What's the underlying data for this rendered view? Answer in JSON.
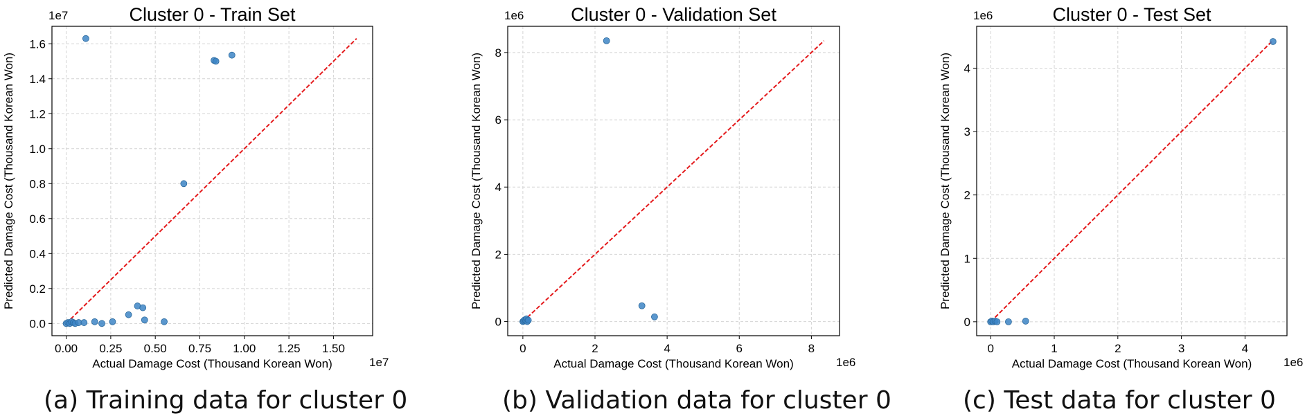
{
  "chart_data": [
    {
      "type": "scatter",
      "title": "Cluster 0 - Train Set",
      "xlabel": "Actual Damage Cost (Thousand Korean Won)",
      "ylabel": "Predicted Damage Cost (Thousand Korean Won)",
      "x_offset_label": "1e7",
      "y_offset_label": "1e7",
      "scale": 10000000,
      "xlim": [
        -0.08,
        1.72
      ],
      "ylim": [
        -0.07,
        1.7
      ],
      "xticks": [
        0.0,
        0.25,
        0.5,
        0.75,
        1.0,
        1.25,
        1.5
      ],
      "xtick_labels": [
        "0.00",
        "0.25",
        "0.50",
        "0.75",
        "1.00",
        "1.25",
        "1.50"
      ],
      "yticks": [
        0.0,
        0.2,
        0.4,
        0.6,
        0.8,
        1.0,
        1.2,
        1.4,
        1.6
      ],
      "ytick_labels": [
        "0.0",
        "0.2",
        "0.4",
        "0.6",
        "0.8",
        "1.0",
        "1.2",
        "1.4",
        "1.6"
      ],
      "grid": true,
      "reference_line": {
        "from": 0,
        "to": 1.63,
        "color": "#e41a1c",
        "style": "dashed"
      },
      "points": [
        {
          "x": 0.0,
          "y": 0.0
        },
        {
          "x": 0.01,
          "y": 0.005
        },
        {
          "x": 0.02,
          "y": 0.0
        },
        {
          "x": 0.03,
          "y": 0.01
        },
        {
          "x": 0.04,
          "y": 0.005
        },
        {
          "x": 0.05,
          "y": 0.0
        },
        {
          "x": 0.07,
          "y": 0.005
        },
        {
          "x": 0.1,
          "y": 0.005
        },
        {
          "x": 0.11,
          "y": 1.63
        },
        {
          "x": 0.16,
          "y": 0.01
        },
        {
          "x": 0.2,
          "y": 0.0
        },
        {
          "x": 0.26,
          "y": 0.01
        },
        {
          "x": 0.35,
          "y": 0.05
        },
        {
          "x": 0.4,
          "y": 0.1
        },
        {
          "x": 0.43,
          "y": 0.09
        },
        {
          "x": 0.44,
          "y": 0.02
        },
        {
          "x": 0.55,
          "y": 0.01
        },
        {
          "x": 0.66,
          "y": 0.8
        },
        {
          "x": 0.83,
          "y": 1.505
        },
        {
          "x": 0.84,
          "y": 1.5
        },
        {
          "x": 0.93,
          "y": 1.535
        }
      ],
      "point_color": "#3d85c6"
    },
    {
      "type": "scatter",
      "title": "Cluster 0 - Validation Set",
      "xlabel": "Actual Damage Cost (Thousand Korean Won)",
      "ylabel": "Predicted Damage Cost (Thousand Korean Won)",
      "x_offset_label": "1e6",
      "y_offset_label": "1e6",
      "scale": 1000000,
      "xlim": [
        -0.42,
        8.78
      ],
      "ylim": [
        -0.42,
        8.78
      ],
      "xticks": [
        0,
        2,
        4,
        6,
        8
      ],
      "xtick_labels": [
        "0",
        "2",
        "4",
        "6",
        "8"
      ],
      "yticks": [
        0,
        2,
        4,
        6,
        8
      ],
      "ytick_labels": [
        "0",
        "2",
        "4",
        "6",
        "8"
      ],
      "grid": true,
      "reference_line": {
        "from": 0,
        "to": 8.35,
        "color": "#e41a1c",
        "style": "dashed"
      },
      "points": [
        {
          "x": 0.0,
          "y": 0.0
        },
        {
          "x": 0.02,
          "y": 0.02
        },
        {
          "x": 0.05,
          "y": 0.05
        },
        {
          "x": 0.08,
          "y": 0.03
        },
        {
          "x": 0.1,
          "y": 0.08
        },
        {
          "x": 0.12,
          "y": 0.0
        },
        {
          "x": 0.15,
          "y": 0.04
        },
        {
          "x": 2.32,
          "y": 8.35
        },
        {
          "x": 3.3,
          "y": 0.47
        },
        {
          "x": 3.65,
          "y": 0.14
        }
      ],
      "point_color": "#3d85c6"
    },
    {
      "type": "scatter",
      "title": "Cluster 0 - Test Set",
      "xlabel": "Actual Damage Cost (Thousand Korean Won)",
      "ylabel": "Predicted Damage Cost (Thousand Korean Won)",
      "x_offset_label": "1e6",
      "y_offset_label": "1e6",
      "scale": 1000000,
      "xlim": [
        -0.22,
        4.66
      ],
      "ylim": [
        -0.22,
        4.66
      ],
      "xticks": [
        0,
        1,
        2,
        3,
        4
      ],
      "xtick_labels": [
        "0",
        "1",
        "2",
        "3",
        "4"
      ],
      "yticks": [
        0,
        1,
        2,
        3,
        4
      ],
      "ytick_labels": [
        "0",
        "1",
        "2",
        "3",
        "4"
      ],
      "grid": true,
      "reference_line": {
        "from": 0,
        "to": 4.44,
        "color": "#e41a1c",
        "style": "dashed"
      },
      "points": [
        {
          "x": 0.0,
          "y": 0.0
        },
        {
          "x": 0.02,
          "y": 0.01
        },
        {
          "x": 0.04,
          "y": 0.0
        },
        {
          "x": 0.07,
          "y": 0.01
        },
        {
          "x": 0.1,
          "y": 0.0
        },
        {
          "x": 0.28,
          "y": 0.0
        },
        {
          "x": 0.55,
          "y": 0.01
        },
        {
          "x": 4.44,
          "y": 4.42
        }
      ],
      "point_color": "#3d85c6"
    }
  ],
  "captions": [
    "(a) Training data for cluster 0",
    "(b) Validation data for cluster 0",
    "(c) Test data for cluster 0"
  ]
}
